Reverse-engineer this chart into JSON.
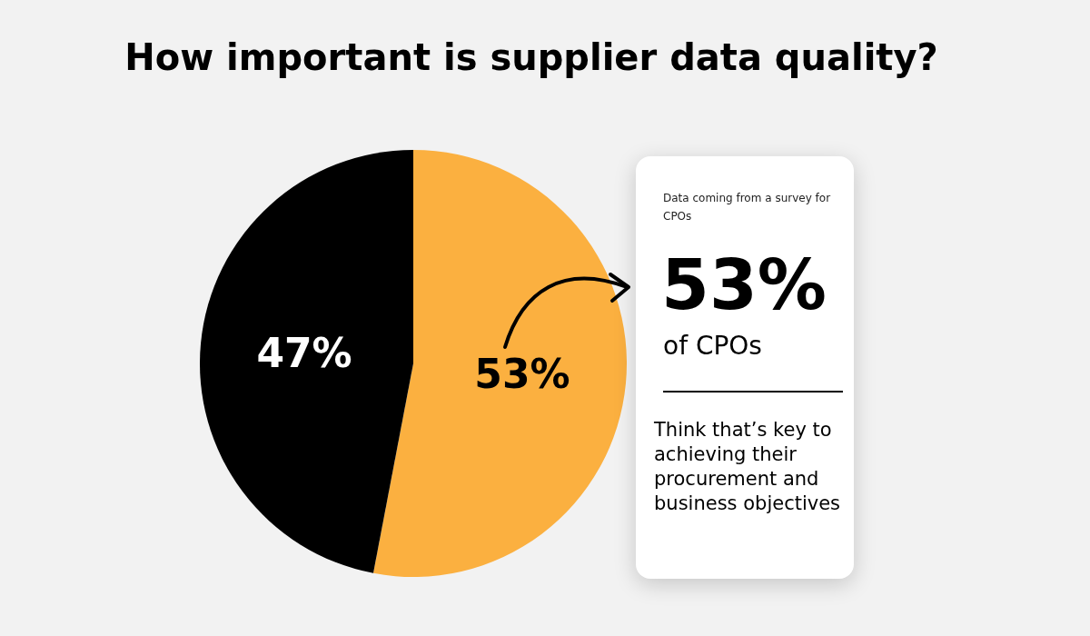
{
  "chart_data": {
    "type": "pie",
    "title": "How important is supplier data quality?",
    "categories": [
      null,
      null
    ],
    "values": [
      53,
      47
    ],
    "colors": [
      "#fbb040",
      "#000000"
    ],
    "value_labels": [
      "53%",
      "47%"
    ],
    "annotations": [
      "Data coming from a survey for CPOs",
      "53%",
      "of CPOs",
      "Think that’s key to achieving  their procurement and business objectives"
    ]
  }
}
